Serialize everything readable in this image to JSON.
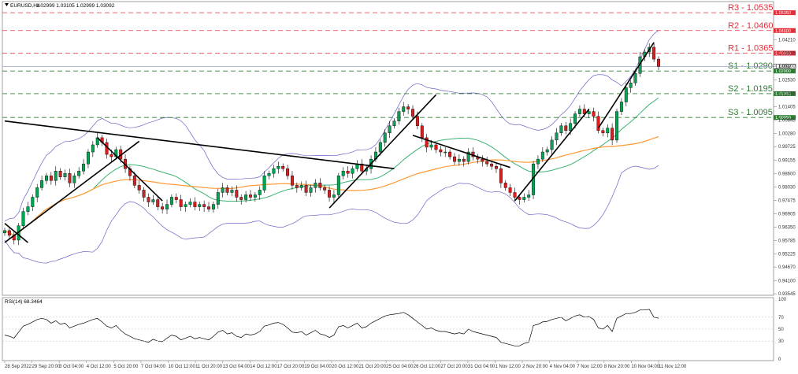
{
  "header": {
    "symbol": "EURUSD,H4",
    "ohlc": "1.02999 1.03105 1.02999 1.03092"
  },
  "rsi_header": "RSI(14) 68.3464",
  "price_axis": {
    "ticks": [
      "1.04210",
      "1.03655",
      "1.03100",
      "1.02530",
      "1.01965",
      "1.01405",
      "1.00845",
      "1.00280",
      "0.99725",
      "0.99155",
      "0.98600",
      "0.98030",
      "0.97475",
      "0.96905",
      "0.96350",
      "0.95785",
      "0.95225",
      "0.94670",
      "0.94100",
      "0.93545"
    ],
    "current": "1.03092",
    "current_value": 1.03092
  },
  "rsi_axis": {
    "ticks": [
      "100",
      "70",
      "50",
      "30",
      "0"
    ]
  },
  "time_axis": {
    "ticks": [
      "28 Sep 2022",
      "29 Sep 20:00",
      "3 Oct 04:00",
      "4 Oct 12:00",
      "5 Oct 20:00",
      "7 Oct 04:00",
      "10 Oct 12:00",
      "11 Oct 20:00",
      "13 Oct 04:00",
      "14 Oct 12:00",
      "17 Oct 20:00",
      "19 Oct 04:00",
      "20 Oct 12:00",
      "21 Oct 20:00",
      "25 Oct 04:00",
      "26 Oct 12:00",
      "27 Oct 20:00",
      "31 Oct 04:00",
      "1 Nov 12:00",
      "2 Nov 20:00",
      "4 Nov 04:00",
      "7 Nov 12:00",
      "8 Nov 20:00",
      "10 Nov 04:00",
      "11 Nov 12:00"
    ]
  },
  "levels": [
    {
      "name": "R3",
      "label": "R3 - 1.0535",
      "value": 1.0535,
      "tag": "1.05350",
      "color": "#e0303a",
      "tag_bg": "#e0303a"
    },
    {
      "name": "R2",
      "label": "R2 - 1.0460",
      "value": 1.046,
      "tag": "1.04600",
      "color": "#e0303a",
      "tag_bg": "#e0303a"
    },
    {
      "name": "R1",
      "label": "R1 - 1.0365",
      "value": 1.0365,
      "tag": "1.03650",
      "color": "#e0303a",
      "tag_bg": "#e0303a"
    },
    {
      "name": "S1",
      "label": "S1 - 1.0290",
      "value": 1.029,
      "tag": "1.02900",
      "color": "#2e7d32",
      "tag_bg": "#2e7d32"
    },
    {
      "name": "S2",
      "label": "S2 - 1.0195",
      "value": 1.0195,
      "tag": "1.01950",
      "color": "#2e7d32",
      "tag_bg": "#2e7d32"
    },
    {
      "name": "S3",
      "label": "S3 - 1.0095",
      "value": 1.0095,
      "tag": "1.00950",
      "color": "#2e7d32",
      "tag_bg": "#2e7d32"
    }
  ],
  "colors": {
    "bull": "#00a651",
    "bear": "#d81e1e",
    "wick": "#000000",
    "boll": "#6a63c6",
    "ma_fast": "#3cb371",
    "ma_slow": "#ff9933",
    "rsi": "#000000",
    "trend": "#000000",
    "grid": "#e6e6e6"
  },
  "chart_data": {
    "type": "candlestick",
    "symbol": "EURUSD",
    "timeframe": "H4",
    "ylim": [
      0.9355,
      1.0575
    ],
    "rsi_ylim": [
      0,
      100
    ],
    "closes": [
      0.962,
      0.96,
      0.958,
      0.964,
      0.97,
      0.972,
      0.976,
      0.98,
      0.983,
      0.985,
      0.983,
      0.987,
      0.9845,
      0.986,
      0.982,
      0.985,
      0.987,
      0.99,
      0.995,
      0.998,
      1.001,
      0.999,
      0.994,
      0.993,
      0.996,
      0.992,
      0.988,
      0.985,
      0.981,
      0.979,
      0.976,
      0.974,
      0.975,
      0.972,
      0.971,
      0.973,
      0.976,
      0.975,
      0.972,
      0.973,
      0.974,
      0.972,
      0.973,
      0.972,
      0.971,
      0.973,
      0.978,
      0.98,
      0.978,
      0.979,
      0.976,
      0.975,
      0.977,
      0.976,
      0.977,
      0.979,
      0.985,
      0.986,
      0.988,
      0.989,
      0.988,
      0.985,
      0.981,
      0.98,
      0.981,
      0.978,
      0.98,
      0.982,
      0.98,
      0.979,
      0.976,
      0.977,
      0.985,
      0.987,
      0.986,
      0.988,
      0.99,
      0.987,
      0.988,
      0.992,
      0.995,
      0.999,
      1.003,
      1.006,
      1.008,
      1.012,
      1.014,
      1.013,
      1.01,
      1.006,
      1.001,
      0.997,
      0.998,
      0.996,
      0.995,
      0.995,
      0.993,
      0.991,
      0.992,
      0.991,
      0.995,
      0.993,
      0.992,
      0.991,
      0.99,
      0.989,
      0.988,
      0.982,
      0.98,
      0.978,
      0.976,
      0.975,
      0.976,
      0.977,
      0.99,
      0.992,
      0.995,
      0.996,
      1.0,
      1.003,
      1.006,
      1.004,
      1.007,
      1.011,
      1.013,
      1.011,
      1.012,
      1.01,
      1.004,
      1.003,
      1.005,
      1.0,
      1.012,
      1.016,
      1.022,
      1.024,
      1.028,
      1.035,
      1.037,
      1.039,
      1.034,
      1.0309
    ],
    "rsi": [
      40,
      38,
      35,
      45,
      55,
      58,
      62,
      66,
      68,
      66,
      60,
      64,
      58,
      60,
      52,
      55,
      58,
      60,
      63,
      66,
      68,
      62,
      55,
      52,
      56,
      48,
      42,
      38,
      34,
      32,
      30,
      28,
      33,
      30,
      29,
      35,
      40,
      38,
      32,
      35,
      38,
      34,
      36,
      34,
      32,
      38,
      45,
      48,
      42,
      44,
      38,
      36,
      42,
      40,
      42,
      46,
      55,
      57,
      60,
      61,
      58,
      52,
      45,
      44,
      46,
      40,
      44,
      48,
      42,
      40,
      36,
      40,
      54,
      56,
      52,
      56,
      60,
      52,
      54,
      60,
      64,
      68,
      72,
      74,
      75,
      76,
      78,
      74,
      68,
      62,
      56,
      50,
      52,
      48,
      46,
      46,
      44,
      42,
      44,
      42,
      50,
      46,
      44,
      42,
      40,
      38,
      36,
      28,
      26,
      24,
      22,
      22,
      26,
      28,
      56,
      58,
      62,
      63,
      66,
      68,
      70,
      64,
      68,
      72,
      74,
      70,
      71,
      66,
      52,
      50,
      56,
      46,
      68,
      72,
      76,
      76,
      78,
      82,
      82,
      83,
      70,
      68.35
    ]
  }
}
